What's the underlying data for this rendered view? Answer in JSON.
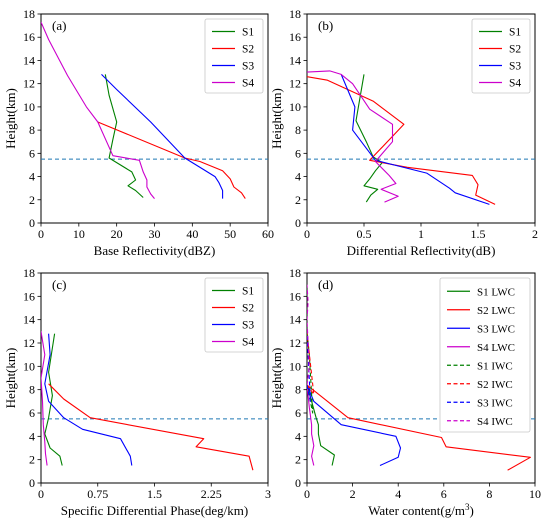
{
  "colors": {
    "S1": "#008000",
    "S2": "#ff0000",
    "S3": "#0000ff",
    "S4": "#cc00cc",
    "melting_layer": "#1f77b4"
  },
  "chart_data": [
    {
      "type": "line",
      "panel_label": "(a)",
      "xlabel": "Base Reflectivity(dBZ)",
      "ylabel": "Height(km)",
      "xlim": [
        0,
        60
      ],
      "ylim": [
        0,
        18
      ],
      "xticks": [
        0,
        10,
        20,
        30,
        40,
        50,
        60
      ],
      "xtick_labels": [
        "0",
        "10",
        "20",
        "30",
        "40",
        "50",
        "60"
      ],
      "yticks": [
        0,
        2,
        4,
        6,
        8,
        10,
        12,
        14,
        16,
        18
      ],
      "ytick_labels": [
        "0",
        "2",
        "4",
        "6",
        "8",
        "10",
        "12",
        "14",
        "16",
        "18"
      ],
      "hline": 5.5,
      "legend": "top-right",
      "series": [
        {
          "name": "S1",
          "color_key": "S1",
          "dashed": false,
          "x": [
            27,
            25,
            23,
            25,
            24,
            18,
            19,
            20,
            18,
            17
          ],
          "y": [
            2.2,
            2.8,
            3.2,
            3.7,
            4.4,
            5.6,
            7.2,
            8.7,
            11.0,
            12.8
          ]
        },
        {
          "name": "S2",
          "color_key": "S2",
          "dashed": false,
          "x": [
            54,
            53,
            51,
            50,
            48,
            42,
            38,
            15
          ],
          "y": [
            2.1,
            2.6,
            3.1,
            3.8,
            4.5,
            5.3,
            5.6,
            8.7
          ]
        },
        {
          "name": "S3",
          "color_key": "S3",
          "dashed": false,
          "x": [
            48,
            48,
            47,
            46,
            43,
            38,
            29,
            20,
            16
          ],
          "y": [
            2.1,
            2.8,
            3.5,
            4.0,
            4.6,
            5.6,
            8.7,
            11.5,
            12.8
          ]
        },
        {
          "name": "S4",
          "color_key": "S4",
          "dashed": false,
          "x": [
            30,
            29,
            28,
            28,
            27,
            26,
            19,
            15,
            12,
            7,
            2,
            0
          ],
          "y": [
            2.1,
            2.5,
            3.1,
            3.7,
            4.4,
            5.4,
            5.8,
            8.7,
            10.0,
            12.7,
            15.8,
            17.3
          ]
        }
      ]
    },
    {
      "type": "line",
      "panel_label": "(b)",
      "xlabel": "Differential Reflectivity(dB)",
      "ylabel": "Height(km)",
      "xlim": [
        0,
        2
      ],
      "ylim": [
        0,
        18
      ],
      "xticks": [
        0,
        0.5,
        1,
        1.5,
        2
      ],
      "xtick_labels": [
        "0",
        "0.5",
        "1",
        "1.5",
        "2"
      ],
      "yticks": [
        0,
        2,
        4,
        6,
        8,
        10,
        12,
        14,
        16,
        18
      ],
      "ytick_labels": [
        "0",
        "2",
        "4",
        "6",
        "8",
        "10",
        "12",
        "14",
        "16",
        "18"
      ],
      "hline": 5.5,
      "legend": "top-right",
      "series": [
        {
          "name": "S1",
          "color_key": "S1",
          "dashed": false,
          "x": [
            0.52,
            0.56,
            0.62,
            0.5,
            0.55,
            0.6,
            0.66,
            0.58,
            0.52,
            0.43,
            0.5
          ],
          "y": [
            1.8,
            2.4,
            2.9,
            3.2,
            3.8,
            4.5,
            5.2,
            5.7,
            7.0,
            8.8,
            12.8
          ]
        },
        {
          "name": "S2",
          "color_key": "S2",
          "dashed": false,
          "x": [
            1.65,
            1.48,
            1.5,
            1.45,
            0.88,
            0.55,
            0.85,
            0.58,
            0.18,
            0.0
          ],
          "y": [
            1.6,
            2.4,
            3.3,
            4.1,
            4.8,
            5.4,
            8.5,
            10.5,
            12.3,
            12.6
          ]
        },
        {
          "name": "S3",
          "color_key": "S3",
          "dashed": false,
          "x": [
            1.6,
            1.3,
            1.25,
            1.05,
            0.6,
            0.4,
            0.42,
            0.3
          ],
          "y": [
            1.6,
            2.6,
            3.0,
            4.3,
            5.4,
            8.0,
            10.0,
            12.8
          ]
        },
        {
          "name": "S4",
          "color_key": "S4",
          "dashed": false,
          "x": [
            0.68,
            0.8,
            0.65,
            0.78,
            0.72,
            0.6,
            0.75,
            0.75,
            0.55,
            0.4,
            0.3,
            0.2,
            0.0
          ],
          "y": [
            1.8,
            2.3,
            2.9,
            3.4,
            4.1,
            5.3,
            7.0,
            8.5,
            9.8,
            12.0,
            12.8,
            13.1,
            13.0
          ]
        }
      ]
    },
    {
      "type": "line",
      "panel_label": "(c)",
      "xlabel": "Specific Differential Phase(deg/km)",
      "ylabel": "Height(km)",
      "xlim": [
        0,
        3
      ],
      "ylim": [
        0,
        18
      ],
      "xticks": [
        0,
        0.75,
        1.5,
        2.25,
        3
      ],
      "xtick_labels": [
        "0",
        "0.75",
        "1.5",
        "2.25",
        "3"
      ],
      "yticks": [
        0,
        2,
        4,
        6,
        8,
        10,
        12,
        14,
        16,
        18
      ],
      "ytick_labels": [
        "0",
        "2",
        "4",
        "6",
        "8",
        "10",
        "12",
        "14",
        "16",
        "18"
      ],
      "hline": 5.5,
      "legend": "top-right",
      "series": [
        {
          "name": "S1",
          "color_key": "S1",
          "dashed": false,
          "x": [
            0.28,
            0.25,
            0.12,
            0.05,
            0.1,
            0.15,
            0.1,
            0.18
          ],
          "y": [
            1.5,
            2.3,
            3.0,
            4.2,
            5.6,
            7.5,
            9.5,
            12.8
          ]
        },
        {
          "name": "S2",
          "color_key": "S2",
          "dashed": false,
          "x": [
            2.8,
            2.75,
            2.05,
            2.15,
            0.65,
            0.3,
            0.1
          ],
          "y": [
            1.1,
            2.3,
            3.1,
            3.8,
            5.6,
            7.2,
            8.5
          ]
        },
        {
          "name": "S3",
          "color_key": "S3",
          "dashed": false,
          "x": [
            1.2,
            1.18,
            1.05,
            0.55,
            0.3,
            0.1,
            0.05,
            0.12,
            0.1
          ],
          "y": [
            1.5,
            2.3,
            3.8,
            4.6,
            5.6,
            7.0,
            8.5,
            11.0,
            12.8
          ]
        },
        {
          "name": "S4",
          "color_key": "S4",
          "dashed": false,
          "x": [
            0.08,
            0.06,
            0.05,
            0.03,
            0.02,
            0.0,
            0.05,
            0.0
          ],
          "y": [
            1.5,
            2.5,
            3.5,
            5.0,
            7.0,
            9.0,
            11.0,
            13.0
          ]
        }
      ]
    },
    {
      "type": "line",
      "panel_label": "(d)",
      "xlabel": "Water content(g/m",
      "xlabel_sup": "3",
      "xlabel_end": ")",
      "ylabel": "Height(km)",
      "xlim": [
        0,
        10
      ],
      "ylim": [
        0,
        18
      ],
      "xticks": [
        0,
        2,
        4,
        6,
        8,
        10
      ],
      "xtick_labels": [
        "0",
        "2",
        "4",
        "6",
        "8",
        "10"
      ],
      "yticks": [
        0,
        2,
        4,
        6,
        8,
        10,
        12,
        14,
        16,
        18
      ],
      "ytick_labels": [
        "0",
        "2",
        "4",
        "6",
        "8",
        "10",
        "12",
        "14",
        "16",
        "18"
      ],
      "hline": 5.5,
      "legend": "top-right",
      "series": [
        {
          "name": "S1 LWC",
          "color_key": "S1",
          "dashed": false,
          "x": [
            1.1,
            1.2,
            0.6,
            0.5,
            0.5,
            0.4,
            0.2,
            0.0
          ],
          "y": [
            1.5,
            2.4,
            3.2,
            4.2,
            5.0,
            5.6,
            7.0,
            8.4
          ]
        },
        {
          "name": "S2 LWC",
          "color_key": "S2",
          "dashed": false,
          "x": [
            8.8,
            9.8,
            6.1,
            5.9,
            1.8,
            0.0
          ],
          "y": [
            1.1,
            2.2,
            3.1,
            3.9,
            5.6,
            8.4
          ]
        },
        {
          "name": "S3 LWC",
          "color_key": "S3",
          "dashed": false,
          "x": [
            3.2,
            4.0,
            4.1,
            3.9,
            1.5,
            0.3,
            0.0
          ],
          "y": [
            1.5,
            2.2,
            3.0,
            4.0,
            5.0,
            7.0,
            8.4
          ]
        },
        {
          "name": "S4 LWC",
          "color_key": "S4",
          "dashed": false,
          "x": [
            0.3,
            0.2,
            0.3,
            0.2,
            0.2,
            0.1,
            0.0
          ],
          "y": [
            1.5,
            2.3,
            3.2,
            4.2,
            5.0,
            6.5,
            8.4
          ]
        },
        {
          "name": "S1 IWC",
          "color_key": "S1",
          "dashed": true,
          "x": [
            0.0,
            0.25,
            0.1,
            0.0
          ],
          "y": [
            8.4,
            6.0,
            11.0,
            13.0
          ]
        },
        {
          "name": "S2 IWC",
          "color_key": "S2",
          "dashed": true,
          "x": [
            0.0,
            0.3,
            0.05,
            0.0
          ],
          "y": [
            8.4,
            7.6,
            12.0,
            13.0
          ]
        },
        {
          "name": "S3 IWC",
          "color_key": "S3",
          "dashed": true,
          "x": [
            0.0,
            0.15,
            0.05,
            0.0
          ],
          "y": [
            8.4,
            7.0,
            11.0,
            13.0
          ]
        },
        {
          "name": "S4 IWC",
          "color_key": "S4",
          "dashed": true,
          "x": [
            0.0,
            0.1,
            0.05,
            0.0,
            0.05,
            0.0
          ],
          "y": [
            8.4,
            10.0,
            12.0,
            14.0,
            15.5,
            17.0
          ]
        }
      ]
    }
  ]
}
